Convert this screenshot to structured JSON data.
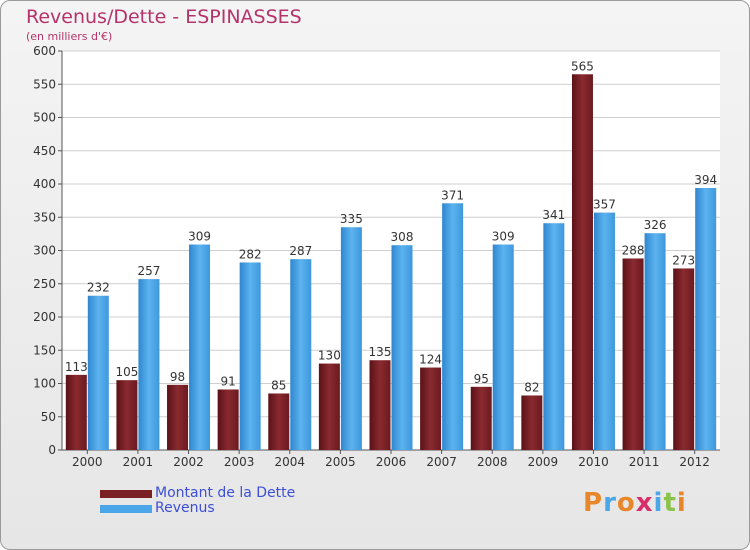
{
  "chart_data": {
    "type": "bar",
    "title": "Revenus/Dette - ESPINASSES",
    "subtitle": "(en milliers d'€)",
    "categories": [
      "2000",
      "2001",
      "2002",
      "2003",
      "2004",
      "2005",
      "2006",
      "2007",
      "2008",
      "2009",
      "2010",
      "2011",
      "2012"
    ],
    "series": [
      {
        "name": "Montant de la Dette",
        "color": "#7a1f24",
        "values": [
          113,
          105,
          98,
          91,
          85,
          130,
          135,
          124,
          95,
          82,
          565,
          288,
          273
        ]
      },
      {
        "name": "Revenus",
        "color": "#4aa6e8",
        "values": [
          232,
          257,
          309,
          282,
          287,
          335,
          308,
          371,
          309,
          341,
          357,
          326,
          394
        ]
      }
    ],
    "ylim": [
      0,
      600
    ],
    "yticks": [
      0,
      50,
      100,
      150,
      200,
      250,
      300,
      350,
      400,
      450,
      500,
      550,
      600
    ],
    "grid": true,
    "legend_position": "bottom-left"
  },
  "logo": {
    "letters": [
      "P",
      "r",
      "o",
      "x",
      "i",
      "t",
      "i"
    ],
    "colors": [
      "#e8862a",
      "#4aa6e8",
      "#e8862a",
      "#d92c6a",
      "#4aa6e8",
      "#8bc34a",
      "#e8862a"
    ]
  }
}
